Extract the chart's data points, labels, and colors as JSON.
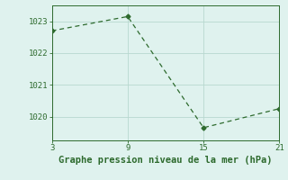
{
  "x": [
    3,
    9,
    15,
    21
  ],
  "y": [
    1022.7,
    1023.15,
    1019.65,
    1020.25
  ],
  "line_color": "#2d6a2d",
  "marker": "D",
  "marker_size": 2.5,
  "background_color": "#dff2ee",
  "grid_color": "#b8d8d0",
  "xlabel": "Graphe pression niveau de la mer (hPa)",
  "xlabel_color": "#2d6a2d",
  "xlabel_fontsize": 7.5,
  "tick_color": "#2d6a2d",
  "tick_fontsize": 6.5,
  "xlim": [
    3,
    21
  ],
  "ylim": [
    1019.25,
    1023.5
  ],
  "xticks": [
    3,
    9,
    15,
    21
  ],
  "yticks": [
    1020,
    1021,
    1022,
    1023
  ],
  "spine_color": "#2d6a2d"
}
